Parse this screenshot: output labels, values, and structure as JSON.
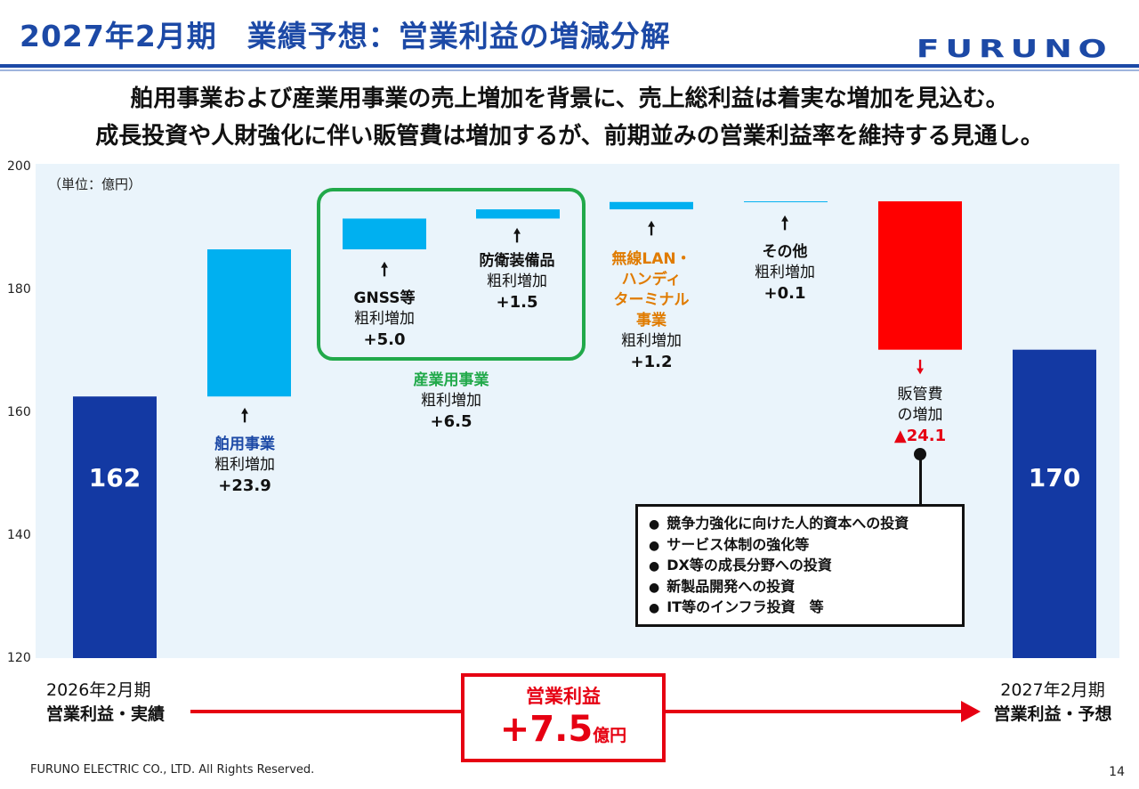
{
  "header": {
    "title": "2027年2月期　業績予想：営業利益の増減分解",
    "logo": "FURUNO",
    "headline1": "舶用事業および産業用事業の売上増加を背景に、売上総利益は着実な増加を見込む。",
    "headline2": "成長投資や人財強化に伴い販管費は増加するが、前期並みの営業利益率を維持する見通し。"
  },
  "colors": {
    "brand_blue": "#1c49a6",
    "increase": "#00b0f0",
    "decrease": "#ff0000",
    "total": "#1339a3",
    "industrial_green": "#21a94a",
    "wireless_orange": "#e07b00"
  },
  "chart_data": {
    "type": "waterfall",
    "unit_label": "（単位：億円）",
    "ylim": [
      120,
      200
    ],
    "yticks": [
      120,
      140,
      160,
      180,
      200
    ],
    "bars": [
      {
        "label": "2026年2月期 営業利益・実績",
        "kind": "total",
        "start": 120,
        "end": 162.5,
        "value_label": "162"
      },
      {
        "label": "舶用事業 粗利増加",
        "kind": "increase",
        "start": 162.5,
        "end": 186.4,
        "value": 23.9
      },
      {
        "label": "GNSS等 粗利増加",
        "kind": "increase",
        "start": 186.4,
        "end": 191.4,
        "value": 5.0
      },
      {
        "label": "防衛装備品 粗利増加",
        "kind": "increase",
        "start": 191.4,
        "end": 192.9,
        "value": 1.5
      },
      {
        "label": "無線LAN・ハンディターミナル事業 粗利増加",
        "kind": "increase",
        "start": 192.9,
        "end": 194.1,
        "value": 1.2
      },
      {
        "label": "その他 粗利増加",
        "kind": "increase",
        "start": 194.1,
        "end": 194.2,
        "value": 0.1
      },
      {
        "label": "販管費の増加",
        "kind": "decrease",
        "start": 194.2,
        "end": 170.1,
        "value": -24.1
      },
      {
        "label": "2027年2月期 営業利益・予想",
        "kind": "total",
        "start": 120,
        "end": 170.1,
        "value_label": "170"
      }
    ]
  },
  "annotations": {
    "marine": {
      "title": "舶用事業",
      "sub": "粗利増加",
      "value": "+23.9"
    },
    "gnss": {
      "title": "GNSS等",
      "sub": "粗利増加",
      "value": "+5.0"
    },
    "defense": {
      "title": "防衛装備品",
      "sub": "粗利増加",
      "value": "+1.5"
    },
    "wireless": {
      "title1": "無線LAN・",
      "title2": "ハンディ",
      "title3": "ターミナル",
      "title4": "事業",
      "sub": "粗利増加",
      "value": "+1.2"
    },
    "other": {
      "title": "その他",
      "sub": "粗利増加",
      "value": "+0.1"
    },
    "sgna": {
      "line1": "販管費",
      "line2": "の増加",
      "value": "▲24.1"
    },
    "industrial": {
      "title": "産業用事業",
      "sub": "粗利増加",
      "value": "+6.5"
    }
  },
  "notes": [
    "競争力強化に向けた人的資本への投資",
    "サービス体制の強化等",
    "DX等の成長分野への投資",
    "新製品開発への投資",
    "IT等のインフラ投資　等"
  ],
  "bottom": {
    "prev_year": "2026年2月期",
    "prev_label": "営業利益・実績",
    "next_year": "2027年2月期",
    "next_label": "営業利益・予想",
    "op_title": "営業利益",
    "op_value": "+7.5",
    "op_unit": "億円"
  },
  "footer": "FURUNO ELECTRIC CO., LTD. All Rights Reserved.",
  "page_number": "14"
}
